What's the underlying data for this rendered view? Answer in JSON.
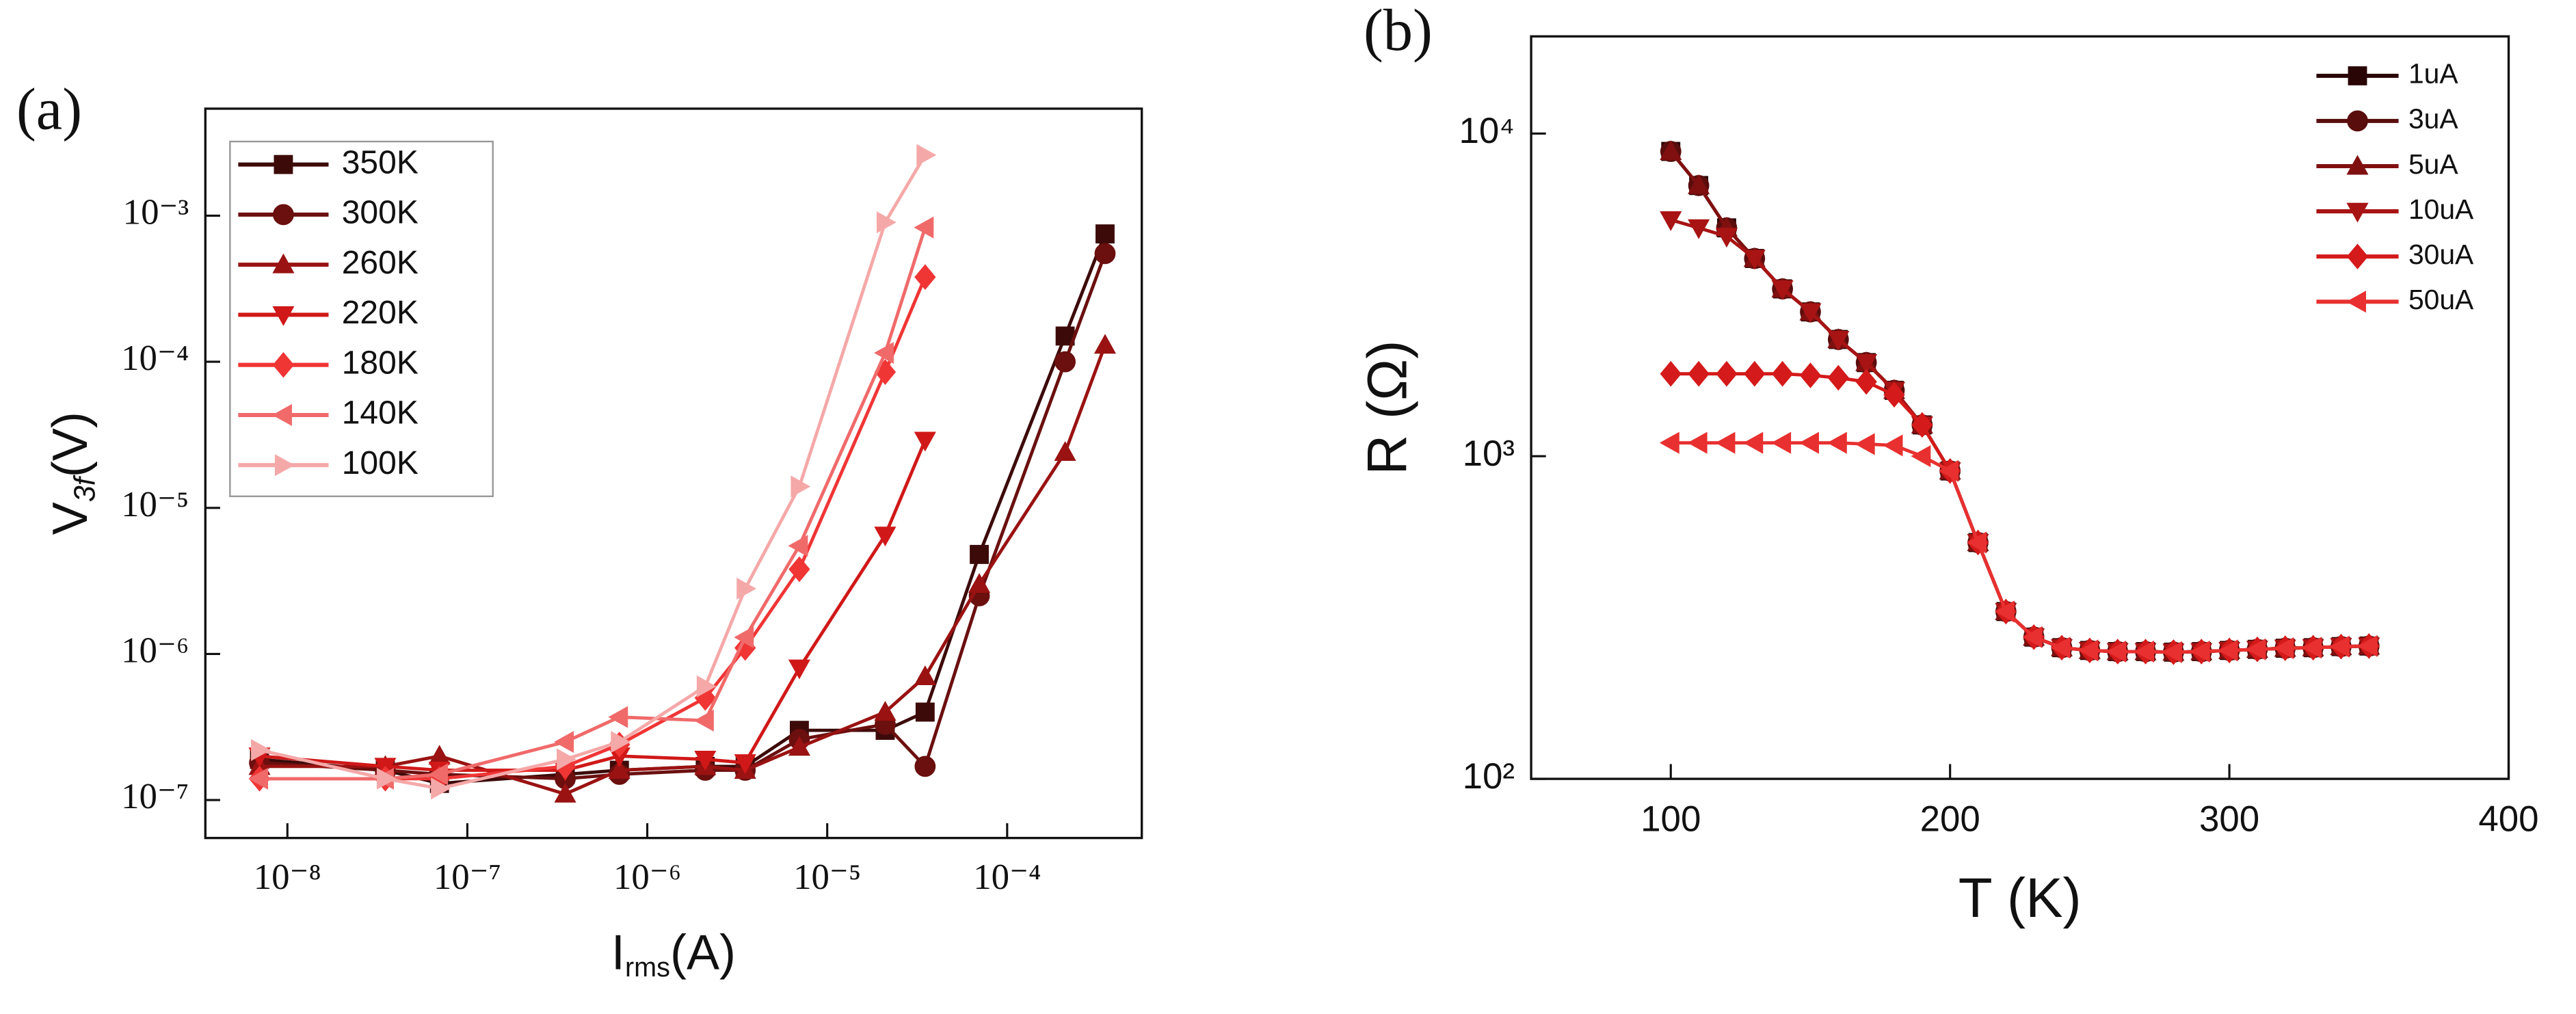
{
  "chart_data": [
    {
      "type": "line",
      "panel_label": "(a)",
      "xlabel_parts": [
        "I",
        "rms",
        "(A)"
      ],
      "ylabel_parts": [
        "V",
        "3f",
        "(V)"
      ],
      "xlog": true,
      "ylog": true,
      "xlim": [
        3.5e-09,
        0.00056
      ],
      "ylim": [
        5.5e-08,
        0.0054
      ],
      "xticks": [
        {
          "value": 1e-08,
          "label": "10⁻⁸"
        },
        {
          "value": 1e-07,
          "label": "10⁻⁷"
        },
        {
          "value": 1e-06,
          "label": "10⁻⁶"
        },
        {
          "value": 1e-05,
          "label": "10⁻⁵"
        },
        {
          "value": 0.0001,
          "label": "10⁻⁴"
        }
      ],
      "yticks": [
        {
          "value": 1e-07,
          "label": "10⁻⁷"
        },
        {
          "value": 1e-06,
          "label": "10⁻⁶"
        },
        {
          "value": 1e-05,
          "label": "10⁻⁵"
        },
        {
          "value": 0.0001,
          "label": "10⁻⁴"
        },
        {
          "value": 0.001,
          "label": "10⁻³"
        }
      ],
      "legend": "upper-left",
      "legend_box": true,
      "x": [
        7e-09,
        3.5e-08,
        7e-08,
        3.5e-07,
        7e-07,
        2.1e-06,
        3.5e-06,
        7e-06,
        2.1e-05,
        3.5e-05,
        7e-05,
        0.00021,
        0.00035
      ],
      "series": [
        {
          "name": "350K",
          "color": "#3d0a0a",
          "marker": "square",
          "values": [
            1.9e-07,
            1.6e-07,
            1.3e-07,
            1.5e-07,
            1.6e-07,
            1.7e-07,
            1.7e-07,
            3e-07,
            3e-07,
            4e-07,
            4.8e-06,
            0.00015,
            0.00075
          ]
        },
        {
          "name": "300K",
          "color": "#6b0f0f",
          "marker": "circle",
          "values": [
            1.8e-07,
            1.6e-07,
            1.5e-07,
            1.4e-07,
            1.5e-07,
            1.6e-07,
            1.6e-07,
            2.6e-07,
            3.3e-07,
            1.7e-07,
            2.5e-06,
            0.0001,
            0.00055
          ]
        },
        {
          "name": "260K",
          "color": "#9a1212",
          "marker": "triangle-up",
          "values": [
            1.7e-07,
            1.7e-07,
            2e-07,
            1.1e-07,
            1.6e-07,
            1.7e-07,
            1.6e-07,
            2.3e-07,
            4e-07,
            7e-07,
            3e-06,
            2.4e-05,
            0.00013
          ]
        },
        {
          "name": "220K",
          "color": "#d01818",
          "marker": "triangle-down",
          "values": [
            2e-07,
            1.7e-07,
            1.6e-07,
            1.6e-07,
            2e-07,
            1.9e-07,
            1.8e-07,
            8e-07,
            6.5e-06,
            2.9e-05,
            null,
            null,
            null
          ]
        },
        {
          "name": "180K",
          "color": "#f03535",
          "marker": "diamond",
          "values": [
            1.4e-07,
            1.4e-07,
            1.4e-07,
            1.7e-07,
            2.4e-07,
            5e-07,
            1.1e-06,
            3.8e-06,
            8.5e-05,
            0.00038,
            null,
            null,
            null
          ]
        },
        {
          "name": "140K",
          "color": "#f06a6a",
          "marker": "triangle-left",
          "values": [
            1.4e-07,
            1.4e-07,
            1.5e-07,
            2.5e-07,
            3.7e-07,
            3.5e-07,
            1.3e-06,
            5.5e-06,
            0.000115,
            0.00083,
            null,
            null,
            null
          ]
        },
        {
          "name": "100K",
          "color": "#f5a8a8",
          "marker": "triangle-right",
          "values": [
            2.2e-07,
            1.4e-07,
            1.2e-07,
            1.9e-07,
            2.5e-07,
            6e-07,
            2.8e-06,
            1.4e-05,
            0.0009,
            0.0026,
            null,
            null,
            null
          ]
        }
      ]
    },
    {
      "type": "line",
      "panel_label": "(b)",
      "xlabel": "T (K)",
      "ylabel": "R (Ω)",
      "xlog": false,
      "ylog": true,
      "xlim": [
        50,
        400
      ],
      "ylim": [
        100,
        20000
      ],
      "xticks": [
        100,
        200,
        300,
        400
      ],
      "yticks": [
        {
          "value": 100,
          "label": "10²"
        },
        {
          "value": 1000,
          "label": "10³"
        },
        {
          "value": 10000,
          "label": "10⁴"
        }
      ],
      "legend": "upper-right",
      "legend_box": false,
      "x": [
        100,
        110,
        120,
        130,
        140,
        150,
        160,
        170,
        180,
        190,
        200,
        210,
        220,
        230,
        240,
        250,
        260,
        270,
        280,
        290,
        300,
        310,
        320,
        330,
        340,
        350
      ],
      "series": [
        {
          "name": "1uA",
          "color": "#2a0505",
          "marker": "square",
          "values": [
            8800,
            6900,
            5100,
            4100,
            3300,
            2800,
            2300,
            1950,
            1600,
            1250,
            900,
            540,
            330,
            275,
            255,
            250,
            248,
            248,
            247,
            248,
            250,
            252,
            254,
            255,
            257,
            258
          ]
        },
        {
          "name": "3uA",
          "color": "#5a0d0d",
          "marker": "circle",
          "values": [
            8800,
            6900,
            5100,
            4100,
            3300,
            2800,
            2300,
            1950,
            1600,
            1250,
            900,
            540,
            330,
            275,
            255,
            250,
            248,
            248,
            247,
            248,
            250,
            252,
            254,
            255,
            257,
            258
          ]
        },
        {
          "name": "5uA",
          "color": "#801010",
          "marker": "triangle-up",
          "values": [
            8800,
            6900,
            5100,
            4100,
            3300,
            2800,
            2300,
            1950,
            1600,
            1250,
            900,
            540,
            330,
            275,
            255,
            250,
            248,
            248,
            247,
            248,
            250,
            252,
            254,
            255,
            257,
            258
          ]
        },
        {
          "name": "10uA",
          "color": "#a81414",
          "marker": "triangle-down",
          "values": [
            5400,
            5100,
            4800,
            4100,
            3300,
            2800,
            2300,
            1950,
            1600,
            1250,
            900,
            540,
            330,
            275,
            255,
            250,
            248,
            248,
            247,
            248,
            250,
            252,
            254,
            255,
            257,
            258
          ]
        },
        {
          "name": "30uA",
          "color": "#d41a1a",
          "marker": "diamond",
          "values": [
            1800,
            1800,
            1800,
            1800,
            1800,
            1780,
            1750,
            1700,
            1550,
            1250,
            900,
            540,
            330,
            275,
            255,
            250,
            248,
            248,
            247,
            248,
            250,
            252,
            254,
            255,
            257,
            258
          ]
        },
        {
          "name": "50uA",
          "color": "#e83030",
          "marker": "triangle-left",
          "values": [
            1100,
            1100,
            1100,
            1100,
            1100,
            1100,
            1100,
            1090,
            1080,
            1000,
            900,
            540,
            330,
            275,
            255,
            250,
            248,
            248,
            247,
            248,
            250,
            252,
            254,
            255,
            257,
            258
          ]
        }
      ]
    }
  ]
}
